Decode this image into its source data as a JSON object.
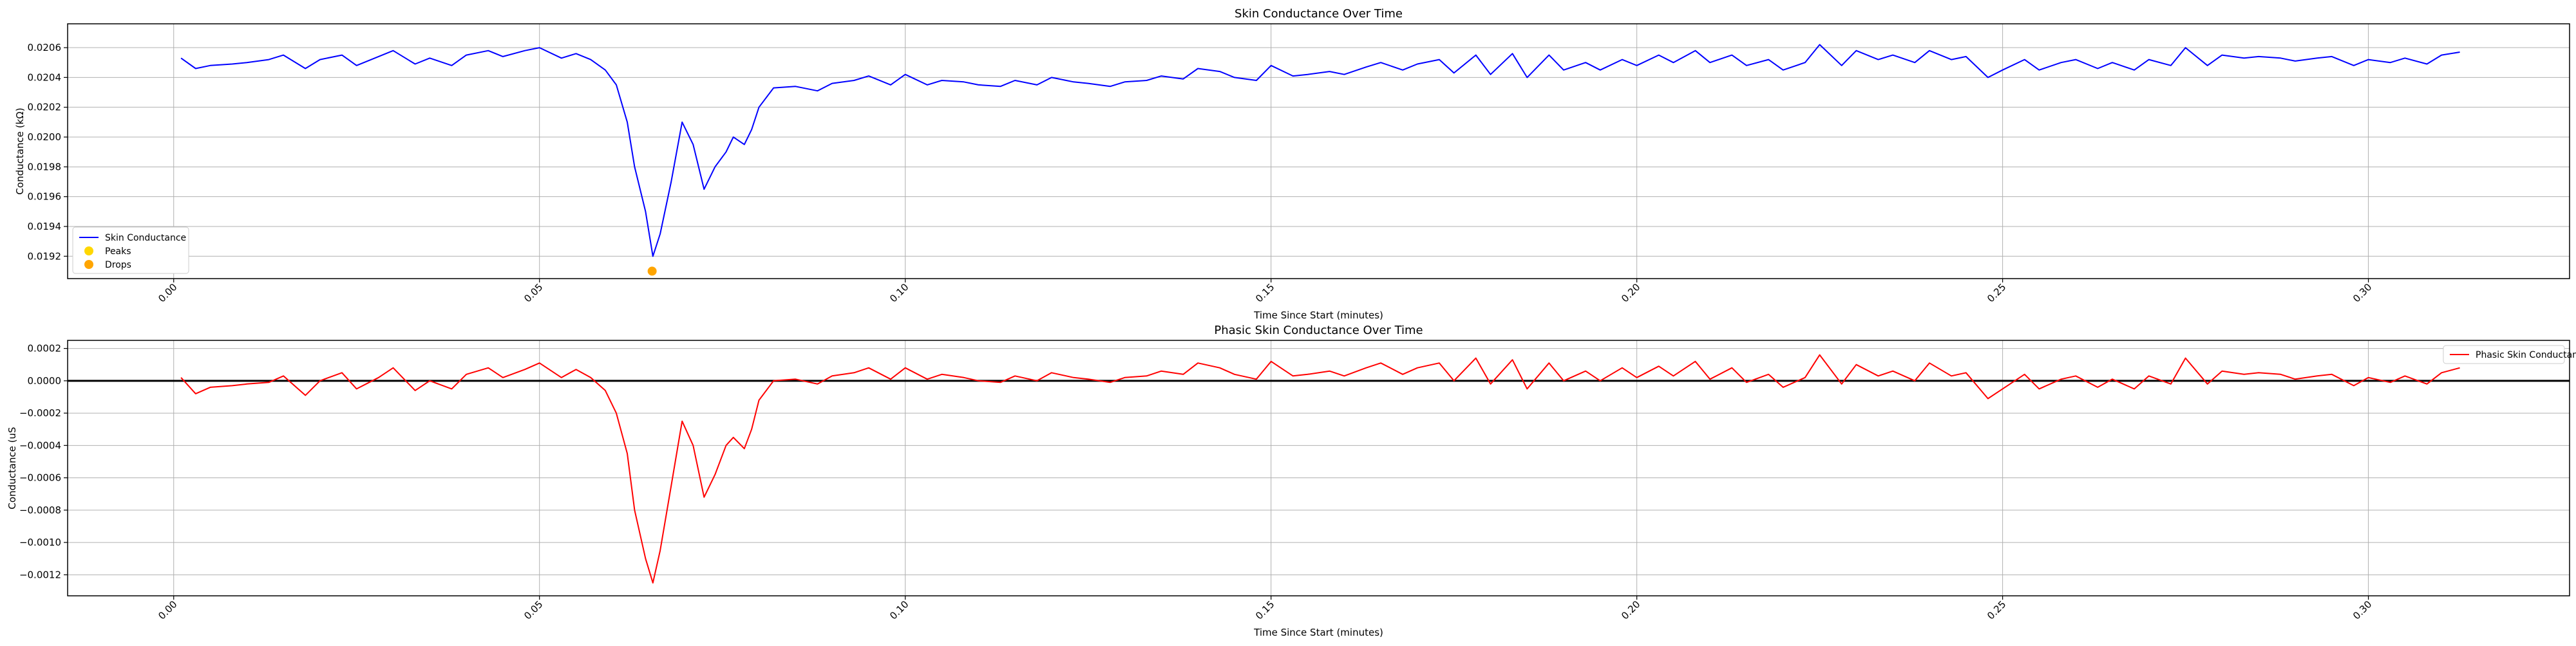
{
  "chart_data": [
    {
      "type": "line",
      "title": "Skin Conductance Over Time",
      "xlabel": "Time Since Start (minutes)",
      "ylabel": "Conductance (kΩ)",
      "xlim": [
        -0.0145,
        0.3275
      ],
      "ylim": [
        0.01905,
        0.02076
      ],
      "grid": true,
      "legend_position": "lower-left",
      "x_ticks": [
        "0.00",
        "0.05",
        "0.10",
        "0.15",
        "0.20",
        "0.25",
        "0.30"
      ],
      "x_tick_values": [
        0.0,
        0.05,
        0.1,
        0.15,
        0.2,
        0.25,
        0.3
      ],
      "y_ticks": [
        "0.0192",
        "0.0194",
        "0.0196",
        "0.0198",
        "0.0200",
        "0.0202",
        "0.0204",
        "0.0206"
      ],
      "y_tick_values": [
        0.0192,
        0.0194,
        0.0196,
        0.0198,
        0.02,
        0.0202,
        0.0204,
        0.0206
      ],
      "legend": [
        {
          "label": "Skin Conductance",
          "kind": "line",
          "color": "#0000ff"
        },
        {
          "label": "Peaks",
          "kind": "marker",
          "color": "#ffd700"
        },
        {
          "label": "Drops",
          "kind": "marker",
          "color": "#ffa500"
        }
      ],
      "series": [
        {
          "name": "Skin Conductance",
          "color": "#0000ff",
          "x": [
            0.001,
            0.003,
            0.005,
            0.008,
            0.01,
            0.013,
            0.015,
            0.018,
            0.02,
            0.023,
            0.025,
            0.028,
            0.03,
            0.033,
            0.035,
            0.038,
            0.04,
            0.043,
            0.045,
            0.048,
            0.05,
            0.053,
            0.055,
            0.057,
            0.059,
            0.0605,
            0.062,
            0.063,
            0.0645,
            0.0655,
            0.0665,
            0.068,
            0.0695,
            0.071,
            0.0725,
            0.074,
            0.0755,
            0.0765,
            0.078,
            0.079,
            0.08,
            0.082,
            0.085,
            0.088,
            0.09,
            0.093,
            0.095,
            0.098,
            0.1,
            0.103,
            0.105,
            0.108,
            0.11,
            0.113,
            0.115,
            0.118,
            0.12,
            0.123,
            0.125,
            0.128,
            0.13,
            0.133,
            0.135,
            0.138,
            0.14,
            0.143,
            0.145,
            0.148,
            0.15,
            0.153,
            0.155,
            0.158,
            0.16,
            0.163,
            0.165,
            0.168,
            0.17,
            0.173,
            0.175,
            0.178,
            0.18,
            0.183,
            0.185,
            0.188,
            0.19,
            0.193,
            0.195,
            0.198,
            0.2,
            0.203,
            0.205,
            0.208,
            0.21,
            0.213,
            0.215,
            0.218,
            0.22,
            0.223,
            0.225,
            0.228,
            0.23,
            0.233,
            0.235,
            0.238,
            0.24,
            0.243,
            0.245,
            0.248,
            0.25,
            0.253,
            0.255,
            0.258,
            0.26,
            0.263,
            0.265,
            0.268,
            0.27,
            0.273,
            0.275,
            0.278,
            0.28,
            0.283,
            0.285,
            0.288,
            0.29,
            0.293,
            0.295,
            0.298,
            0.3,
            0.303,
            0.305,
            0.308,
            0.31,
            0.3125
          ],
          "values": [
            0.02053,
            0.02046,
            0.02048,
            0.02049,
            0.0205,
            0.02052,
            0.02055,
            0.02046,
            0.02052,
            0.02055,
            0.02048,
            0.02054,
            0.02058,
            0.02049,
            0.02053,
            0.02048,
            0.02055,
            0.02058,
            0.02054,
            0.02058,
            0.0206,
            0.02053,
            0.02056,
            0.02052,
            0.02045,
            0.02035,
            0.0201,
            0.0198,
            0.0195,
            0.0192,
            0.01935,
            0.0197,
            0.0201,
            0.01995,
            0.01965,
            0.0198,
            0.0199,
            0.02,
            0.01995,
            0.02005,
            0.0202,
            0.02033,
            0.02034,
            0.02031,
            0.02036,
            0.02038,
            0.02041,
            0.02035,
            0.02042,
            0.02035,
            0.02038,
            0.02037,
            0.02035,
            0.02034,
            0.02038,
            0.02035,
            0.0204,
            0.02037,
            0.02036,
            0.02034,
            0.02037,
            0.02038,
            0.02041,
            0.02039,
            0.02046,
            0.02044,
            0.0204,
            0.02038,
            0.02048,
            0.02041,
            0.02042,
            0.02044,
            0.02042,
            0.02047,
            0.0205,
            0.02045,
            0.02049,
            0.02052,
            0.02043,
            0.02055,
            0.02042,
            0.02056,
            0.0204,
            0.02055,
            0.02045,
            0.0205,
            0.02045,
            0.02052,
            0.02048,
            0.02055,
            0.0205,
            0.02058,
            0.0205,
            0.02055,
            0.02048,
            0.02052,
            0.02045,
            0.0205,
            0.02062,
            0.02048,
            0.02058,
            0.02052,
            0.02055,
            0.0205,
            0.02058,
            0.02052,
            0.02054,
            0.0204,
            0.02045,
            0.02052,
            0.02045,
            0.0205,
            0.02052,
            0.02046,
            0.0205,
            0.02045,
            0.02052,
            0.02048,
            0.0206,
            0.02048,
            0.02055,
            0.02053,
            0.02054,
            0.02053,
            0.02051,
            0.02053,
            0.02054,
            0.02048,
            0.02052,
            0.0205,
            0.02053,
            0.02049,
            0.02055,
            0.02057
          ]
        },
        {
          "name": "Drops",
          "kind": "scatter",
          "color": "#ffa500",
          "x": [
            0.0654
          ],
          "values": [
            0.0191
          ]
        }
      ]
    },
    {
      "type": "line",
      "title": "Phasic Skin Conductance Over Time",
      "xlabel": "Time Since Start (minutes)",
      "ylabel": "Conductance (uS",
      "xlim": [
        -0.0145,
        0.3275
      ],
      "ylim": [
        -0.00133,
        0.00025
      ],
      "grid": true,
      "legend_position": "top-right",
      "zero_line": true,
      "x_ticks": [
        "0.00",
        "0.05",
        "0.10",
        "0.15",
        "0.20",
        "0.25",
        "0.30"
      ],
      "x_tick_values": [
        0.0,
        0.05,
        0.1,
        0.15,
        0.2,
        0.25,
        0.3
      ],
      "y_ticks": [
        "0.0002",
        "0.0000",
        "−0.0002",
        "−0.0004",
        "−0.0006",
        "−0.0008",
        "−0.0010",
        "−0.0012"
      ],
      "y_tick_values": [
        0.0002,
        0.0,
        -0.0002,
        -0.0004,
        -0.0006,
        -0.0008,
        -0.001,
        -0.0012
      ],
      "legend": [
        {
          "label": "Phasic Skin Conductance",
          "kind": "line",
          "color": "#ff0000"
        }
      ],
      "series": [
        {
          "name": "Phasic Skin Conductance",
          "color": "#ff0000",
          "x": [
            0.001,
            0.003,
            0.005,
            0.008,
            0.01,
            0.013,
            0.015,
            0.018,
            0.02,
            0.023,
            0.025,
            0.028,
            0.03,
            0.033,
            0.035,
            0.038,
            0.04,
            0.043,
            0.045,
            0.048,
            0.05,
            0.053,
            0.055,
            0.057,
            0.059,
            0.0605,
            0.062,
            0.063,
            0.0645,
            0.0655,
            0.0665,
            0.068,
            0.0695,
            0.071,
            0.0725,
            0.074,
            0.0755,
            0.0765,
            0.078,
            0.079,
            0.08,
            0.082,
            0.085,
            0.088,
            0.09,
            0.093,
            0.095,
            0.098,
            0.1,
            0.103,
            0.105,
            0.108,
            0.11,
            0.113,
            0.115,
            0.118,
            0.12,
            0.123,
            0.125,
            0.128,
            0.13,
            0.133,
            0.135,
            0.138,
            0.14,
            0.143,
            0.145,
            0.148,
            0.15,
            0.153,
            0.155,
            0.158,
            0.16,
            0.163,
            0.165,
            0.168,
            0.17,
            0.173,
            0.175,
            0.178,
            0.18,
            0.183,
            0.185,
            0.188,
            0.19,
            0.193,
            0.195,
            0.198,
            0.2,
            0.203,
            0.205,
            0.208,
            0.21,
            0.213,
            0.215,
            0.218,
            0.22,
            0.223,
            0.225,
            0.228,
            0.23,
            0.233,
            0.235,
            0.238,
            0.24,
            0.243,
            0.245,
            0.248,
            0.25,
            0.253,
            0.255,
            0.258,
            0.26,
            0.263,
            0.265,
            0.268,
            0.27,
            0.273,
            0.275,
            0.278,
            0.28,
            0.283,
            0.285,
            0.288,
            0.29,
            0.293,
            0.295,
            0.298,
            0.3,
            0.303,
            0.305,
            0.308,
            0.31,
            0.3125
          ],
          "values": [
            2e-05,
            -8e-05,
            -4e-05,
            -3e-05,
            -2e-05,
            -1e-05,
            3e-05,
            -9e-05,
            0.0,
            5e-05,
            -5e-05,
            2e-05,
            8e-05,
            -6e-05,
            0.0,
            -5e-05,
            4e-05,
            8e-05,
            2e-05,
            7e-05,
            0.00011,
            2e-05,
            7e-05,
            2e-05,
            -6e-05,
            -0.0002,
            -0.00045,
            -0.0008,
            -0.0011,
            -0.00125,
            -0.00105,
            -0.00065,
            -0.00025,
            -0.0004,
            -0.00072,
            -0.00058,
            -0.0004,
            -0.00035,
            -0.00042,
            -0.0003,
            -0.00012,
            0.0,
            1e-05,
            -2e-05,
            3e-05,
            5e-05,
            8e-05,
            1e-05,
            8e-05,
            1e-05,
            4e-05,
            2e-05,
            0.0,
            -1e-05,
            3e-05,
            0.0,
            5e-05,
            2e-05,
            1e-05,
            -1e-05,
            2e-05,
            3e-05,
            6e-05,
            4e-05,
            0.00011,
            8e-05,
            4e-05,
            1e-05,
            0.00012,
            3e-05,
            4e-05,
            6e-05,
            3e-05,
            8e-05,
            0.00011,
            4e-05,
            8e-05,
            0.00011,
            0.0,
            0.00014,
            -2e-05,
            0.00013,
            -5e-05,
            0.00011,
            0.0,
            6e-05,
            0.0,
            8e-05,
            2e-05,
            9e-05,
            3e-05,
            0.00012,
            1e-05,
            8e-05,
            -1e-05,
            4e-05,
            -4e-05,
            2e-05,
            0.00016,
            -2e-05,
            0.0001,
            3e-05,
            6e-05,
            0.0,
            0.00011,
            3e-05,
            5e-05,
            -0.00011,
            -5e-05,
            4e-05,
            -5e-05,
            1e-05,
            3e-05,
            -4e-05,
            1e-05,
            -5e-05,
            3e-05,
            -2e-05,
            0.00014,
            -2e-05,
            6e-05,
            4e-05,
            5e-05,
            4e-05,
            1e-05,
            3e-05,
            4e-05,
            -3e-05,
            2e-05,
            -1e-05,
            3e-05,
            -2e-05,
            5e-05,
            8e-05
          ]
        }
      ]
    }
  ]
}
